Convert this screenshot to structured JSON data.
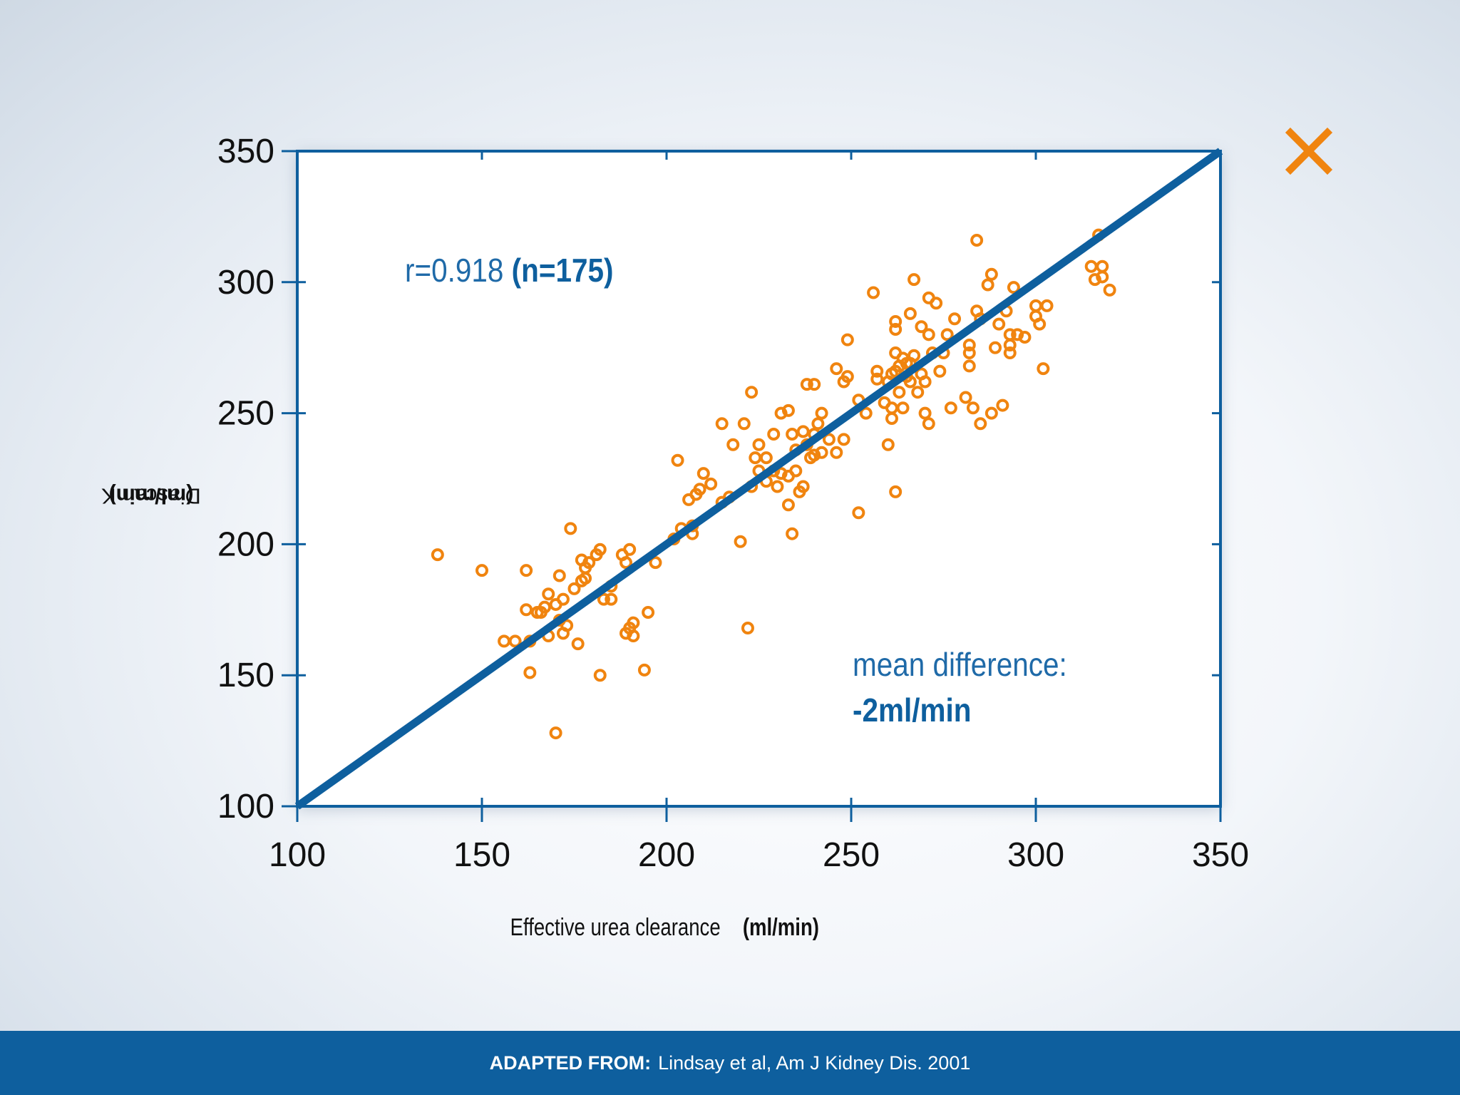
{
  "close_icon": "close-x-icon",
  "annotations": {
    "r_text": "r=0.918",
    "n_text": "(n=175)",
    "mean_line1": "mean difference:",
    "mean_line2": "-2ml/min"
  },
  "footer": {
    "prefix": "ADAPTED FROM:",
    "citation": "Lindsay et al, Am J Kidney Dis. 2001"
  },
  "colors": {
    "accent_blue": "#0e5f9e",
    "points_orange": "#f0840f",
    "close_orange": "#f0840f"
  },
  "chart_data": {
    "type": "scatter",
    "title": "",
    "xlabel": "Effective urea clearance",
    "xlabel_unit": "(ml/min)",
    "ylabel": "Diascan K",
    "ylabel_unit": "(ml/min)",
    "xlim": [
      100,
      350
    ],
    "ylim": [
      100,
      350
    ],
    "xticks": [
      100,
      150,
      200,
      250,
      300,
      350
    ],
    "yticks": [
      100,
      150,
      200,
      250,
      300,
      350
    ],
    "grid": false,
    "reference_line": {
      "from": [
        100,
        100
      ],
      "to": [
        350,
        350
      ]
    },
    "series": [
      {
        "points": [
          [
            138,
            196
          ],
          [
            150,
            190
          ],
          [
            156,
            163
          ],
          [
            159,
            163
          ],
          [
            162,
            175
          ],
          [
            162,
            190
          ],
          [
            163,
            151
          ],
          [
            163,
            163
          ],
          [
            165,
            174
          ],
          [
            167,
            176
          ],
          [
            168,
            165
          ],
          [
            168,
            181
          ],
          [
            170,
            177
          ],
          [
            170,
            128
          ],
          [
            171,
            188
          ],
          [
            171,
            171
          ],
          [
            172,
            179
          ],
          [
            172,
            166
          ],
          [
            173,
            169
          ],
          [
            174,
            206
          ],
          [
            176,
            162
          ],
          [
            177,
            186
          ],
          [
            177,
            194
          ],
          [
            178,
            187
          ],
          [
            178,
            191
          ],
          [
            179,
            193
          ],
          [
            181,
            196
          ],
          [
            182,
            198
          ],
          [
            182,
            150
          ],
          [
            183,
            179
          ],
          [
            185,
            179
          ],
          [
            185,
            184
          ],
          [
            189,
            166
          ],
          [
            189,
            193
          ],
          [
            190,
            168
          ],
          [
            190,
            198
          ],
          [
            191,
            165
          ],
          [
            191,
            170
          ],
          [
            194,
            152
          ],
          [
            195,
            174
          ],
          [
            197,
            193
          ],
          [
            202,
            202
          ],
          [
            203,
            232
          ],
          [
            206,
            217
          ],
          [
            207,
            204
          ],
          [
            207,
            207
          ],
          [
            208,
            219
          ],
          [
            209,
            221
          ],
          [
            210,
            227
          ],
          [
            215,
            216
          ],
          [
            215,
            246
          ],
          [
            217,
            218
          ],
          [
            220,
            201
          ],
          [
            221,
            246
          ],
          [
            222,
            168
          ],
          [
            223,
            222
          ],
          [
            223,
            258
          ],
          [
            224,
            233
          ],
          [
            225,
            238
          ],
          [
            225,
            228
          ],
          [
            227,
            224
          ],
          [
            229,
            228
          ],
          [
            229,
            242
          ],
          [
            230,
            222
          ],
          [
            231,
            227
          ],
          [
            231,
            250
          ],
          [
            233,
            226
          ],
          [
            233,
            251
          ],
          [
            233,
            215
          ],
          [
            234,
            242
          ],
          [
            234,
            204
          ],
          [
            235,
            228
          ],
          [
            235,
            236
          ],
          [
            236,
            220
          ],
          [
            237,
            243
          ],
          [
            237,
            222
          ],
          [
            238,
            261
          ],
          [
            238,
            238
          ],
          [
            239,
            233
          ],
          [
            240,
            234
          ],
          [
            240,
            261
          ],
          [
            240,
            242
          ],
          [
            241,
            246
          ],
          [
            242,
            235
          ],
          [
            242,
            250
          ],
          [
            246,
            235
          ],
          [
            246,
            267
          ],
          [
            248,
            240
          ],
          [
            248,
            262
          ],
          [
            249,
            264
          ],
          [
            249,
            278
          ],
          [
            252,
            212
          ],
          [
            252,
            255
          ],
          [
            254,
            250
          ],
          [
            256,
            296
          ],
          [
            257,
            266
          ],
          [
            259,
            254
          ],
          [
            260,
            262
          ],
          [
            260,
            238
          ],
          [
            261,
            265
          ],
          [
            261,
            252
          ],
          [
            261,
            248
          ],
          [
            262,
            266
          ],
          [
            262,
            273
          ],
          [
            262,
            282
          ],
          [
            262,
            220
          ],
          [
            262,
            285
          ],
          [
            263,
            268
          ],
          [
            263,
            258
          ],
          [
            264,
            271
          ],
          [
            264,
            252
          ],
          [
            265,
            264
          ],
          [
            265,
            269
          ],
          [
            266,
            288
          ],
          [
            266,
            262
          ],
          [
            267,
            301
          ],
          [
            267,
            272
          ],
          [
            268,
            258
          ],
          [
            269,
            283
          ],
          [
            269,
            265
          ],
          [
            270,
            250
          ],
          [
            270,
            262
          ],
          [
            271,
            246
          ],
          [
            271,
            280
          ],
          [
            271,
            294
          ],
          [
            272,
            273
          ],
          [
            273,
            292
          ],
          [
            274,
            266
          ],
          [
            275,
            273
          ],
          [
            277,
            252
          ],
          [
            278,
            286
          ],
          [
            281,
            256
          ],
          [
            282,
            268
          ],
          [
            282,
            276
          ],
          [
            282,
            273
          ],
          [
            283,
            252
          ],
          [
            284,
            316
          ],
          [
            285,
            286
          ],
          [
            285,
            246
          ],
          [
            287,
            299
          ],
          [
            288,
            303
          ],
          [
            288,
            250
          ],
          [
            289,
            275
          ],
          [
            290,
            284
          ],
          [
            291,
            253
          ],
          [
            293,
            273
          ],
          [
            293,
            276
          ],
          [
            293,
            280
          ],
          [
            294,
            298
          ],
          [
            295,
            280
          ],
          [
            297,
            279
          ],
          [
            300,
            287
          ],
          [
            300,
            291
          ],
          [
            301,
            284
          ],
          [
            302,
            267
          ],
          [
            303,
            291
          ],
          [
            315,
            306
          ],
          [
            316,
            301
          ],
          [
            317,
            318
          ],
          [
            318,
            302
          ],
          [
            318,
            306
          ],
          [
            320,
            297
          ],
          [
            166,
            174
          ],
          [
            175,
            183
          ],
          [
            188,
            196
          ],
          [
            204,
            206
          ],
          [
            212,
            223
          ],
          [
            218,
            238
          ],
          [
            227,
            233
          ],
          [
            244,
            240
          ],
          [
            257,
            263
          ],
          [
            266,
            269
          ],
          [
            276,
            280
          ],
          [
            284,
            289
          ],
          [
            292,
            289
          ]
        ]
      }
    ]
  }
}
